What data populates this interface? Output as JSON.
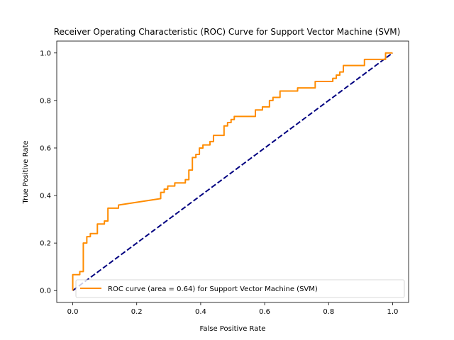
{
  "chart_data": {
    "type": "line",
    "title": "Receiver Operating Characteristic (ROC) Curve for Support Vector Machine (SVM)",
    "xlabel": "False Positive Rate",
    "ylabel": "True Positive Rate",
    "xlim": [
      -0.05,
      1.05
    ],
    "ylim": [
      -0.05,
      1.05
    ],
    "grid": false,
    "legend_position": "lower-right",
    "x_ticks": [
      {
        "value": 0.0,
        "label": "0.0"
      },
      {
        "value": 0.2,
        "label": "0.2"
      },
      {
        "value": 0.4,
        "label": "0.4"
      },
      {
        "value": 0.6,
        "label": "0.6"
      },
      {
        "value": 0.8,
        "label": "0.8"
      },
      {
        "value": 1.0,
        "label": "1.0"
      }
    ],
    "y_ticks": [
      {
        "value": 0.0,
        "label": "0.0"
      },
      {
        "value": 0.2,
        "label": "0.2"
      },
      {
        "value": 0.4,
        "label": "0.4"
      },
      {
        "value": 0.6,
        "label": "0.6"
      },
      {
        "value": 0.8,
        "label": "0.8"
      },
      {
        "value": 1.0,
        "label": "1.0"
      }
    ],
    "series": [
      {
        "name": "ROC curve (area = 0.64) for Support Vector Machine (SVM)",
        "color": "#ff8c00",
        "style": "solid",
        "x": [
          0.0,
          0.0,
          0.022,
          0.022,
          0.033,
          0.033,
          0.044,
          0.044,
          0.055,
          0.055,
          0.077,
          0.077,
          0.099,
          0.099,
          0.11,
          0.11,
          0.143,
          0.143,
          0.275,
          0.275,
          0.286,
          0.286,
          0.297,
          0.297,
          0.319,
          0.319,
          0.352,
          0.352,
          0.363,
          0.363,
          0.374,
          0.374,
          0.385,
          0.385,
          0.396,
          0.396,
          0.407,
          0.407,
          0.429,
          0.429,
          0.44,
          0.44,
          0.473,
          0.473,
          0.484,
          0.484,
          0.495,
          0.495,
          0.505,
          0.505,
          0.571,
          0.571,
          0.593,
          0.593,
          0.615,
          0.615,
          0.626,
          0.626,
          0.648,
          0.648,
          0.703,
          0.703,
          0.758,
          0.758,
          0.813,
          0.813,
          0.824,
          0.824,
          0.835,
          0.835,
          0.846,
          0.846,
          0.857,
          0.857,
          0.912,
          0.912,
          0.978,
          0.978,
          1.0
        ],
        "y": [
          0.0,
          0.067,
          0.067,
          0.08,
          0.08,
          0.2,
          0.2,
          0.227,
          0.227,
          0.24,
          0.24,
          0.28,
          0.28,
          0.293,
          0.293,
          0.347,
          0.347,
          0.36,
          0.387,
          0.413,
          0.413,
          0.427,
          0.427,
          0.44,
          0.44,
          0.453,
          0.453,
          0.467,
          0.467,
          0.507,
          0.507,
          0.56,
          0.56,
          0.573,
          0.573,
          0.6,
          0.6,
          0.613,
          0.613,
          0.627,
          0.627,
          0.653,
          0.653,
          0.693,
          0.693,
          0.707,
          0.707,
          0.72,
          0.72,
          0.733,
          0.733,
          0.76,
          0.76,
          0.773,
          0.773,
          0.8,
          0.8,
          0.813,
          0.813,
          0.84,
          0.84,
          0.853,
          0.853,
          0.88,
          0.88,
          0.893,
          0.893,
          0.907,
          0.907,
          0.92,
          0.92,
          0.947,
          0.947,
          0.947,
          0.947,
          0.973,
          0.973,
          1.0,
          1.0
        ]
      },
      {
        "color": "#000080",
        "style": "dashed",
        "x": [
          0.0,
          1.0
        ],
        "y": [
          0.0,
          1.0
        ]
      }
    ]
  }
}
